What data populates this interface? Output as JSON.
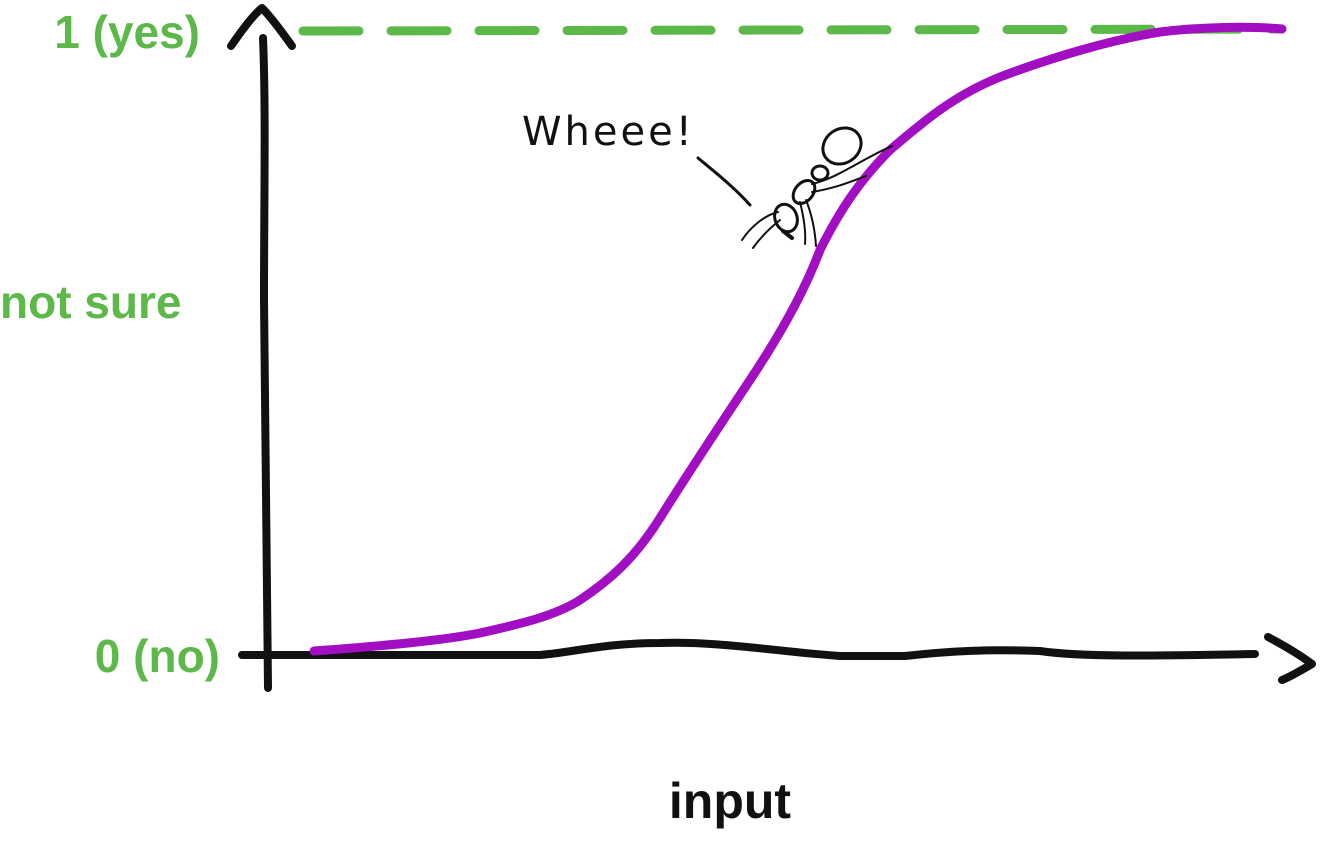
{
  "colors": {
    "accent_label": "#5cb848",
    "curve": "#a20ec2",
    "axes": "#111111",
    "baseline_dash": "#5cb848",
    "ant": "#111111",
    "background": "#ffffff"
  },
  "labels": {
    "y_top": "1 (yes)",
    "y_mid": "not sure",
    "y_bottom": "0 (no)",
    "x_axis": "input",
    "annotation": "Wheee!"
  },
  "curve": {
    "shape": "sigmoid",
    "y_range": [
      0,
      1
    ]
  }
}
